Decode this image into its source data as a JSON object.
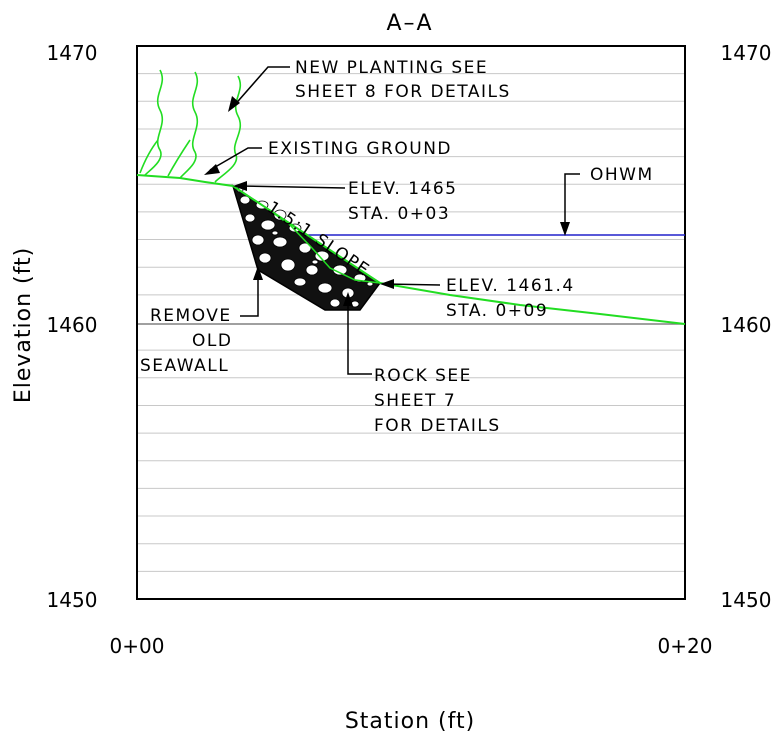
{
  "title": "A–A",
  "axes": {
    "x_label": "Station (ft)",
    "y_label": "Elevation (ft)",
    "x_ticks": [
      "0+00",
      "0+20"
    ],
    "y_ticks_left": [
      "1470",
      "1460",
      "1450"
    ],
    "y_ticks_right": [
      "1470",
      "1460",
      "1450"
    ]
  },
  "notes": {
    "planting_line1": "NEW PLANTING SEE",
    "planting_line2": "SHEET 8 FOR DETAILS",
    "existing_ground": "EXISTING GROUND",
    "elev_top_line1": "ELEV. 1465",
    "elev_top_line2": "STA. 0+03",
    "slope": "1.5:1 SLOPE",
    "ohwm": "OHWM",
    "elev_toe_line1": "ELEV. 1461.4",
    "elev_toe_line2": "STA. 0+09",
    "seawall_line1": "REMOVE",
    "seawall_line2": "OLD",
    "seawall_line3": "SEAWALL",
    "rock_line1": "ROCK SEE",
    "rock_line2": "SHEET 7",
    "rock_line3": "FOR DETAILS"
  },
  "colors": {
    "ground": "#22dd22",
    "water": "#2222cc",
    "grid": "#c8c8c8",
    "datum": "#808080",
    "frame": "#000000"
  }
}
